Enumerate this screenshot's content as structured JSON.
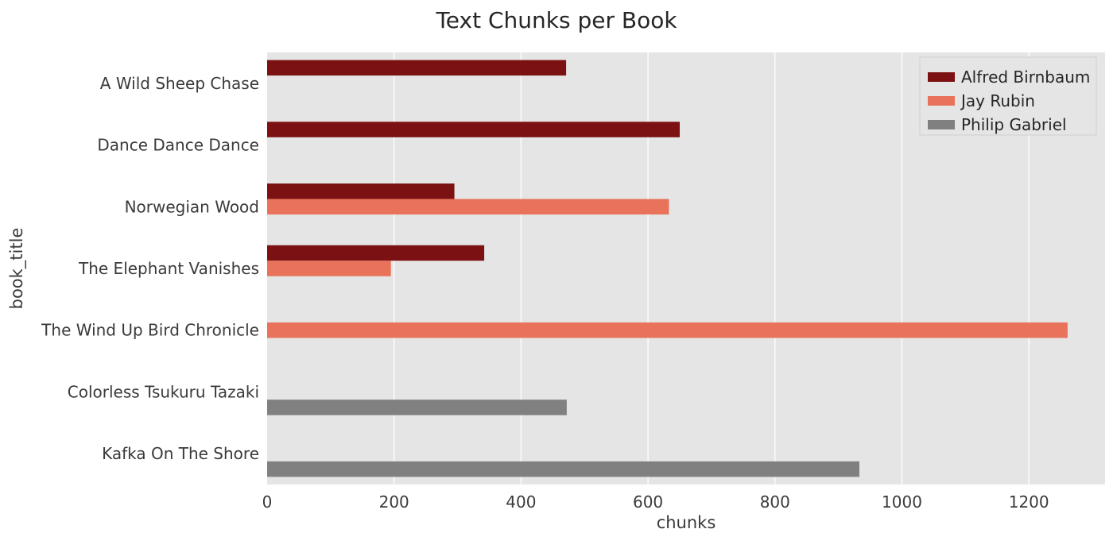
{
  "chart_data": {
    "type": "bar",
    "orientation": "horizontal",
    "title": "Text Chunks per Book",
    "xlabel": "chunks",
    "ylabel": "book_title",
    "xlim": [
      0,
      1320
    ],
    "xticks": [
      0,
      200,
      400,
      600,
      800,
      1000,
      1200
    ],
    "grid": true,
    "legend_position": "top-right",
    "categories": [
      "A Wild Sheep Chase",
      "Dance Dance Dance",
      "Norwegian Wood",
      "The Elephant Vanishes",
      "The Wind Up Bird Chronicle",
      "Colorless Tsukuru Tazaki",
      "Kafka On The Shore"
    ],
    "series": [
      {
        "name": "Alfred Birnbaum",
        "color": "#7b1113",
        "values": [
          471,
          650,
          295,
          342,
          null,
          null,
          null
        ]
      },
      {
        "name": "Jay Rubin",
        "color": "#e8735a",
        "values": [
          null,
          null,
          633,
          195,
          1261,
          null,
          null
        ]
      },
      {
        "name": "Philip Gabriel",
        "color": "#808080",
        "values": [
          null,
          null,
          null,
          null,
          null,
          472,
          933
        ]
      }
    ]
  }
}
